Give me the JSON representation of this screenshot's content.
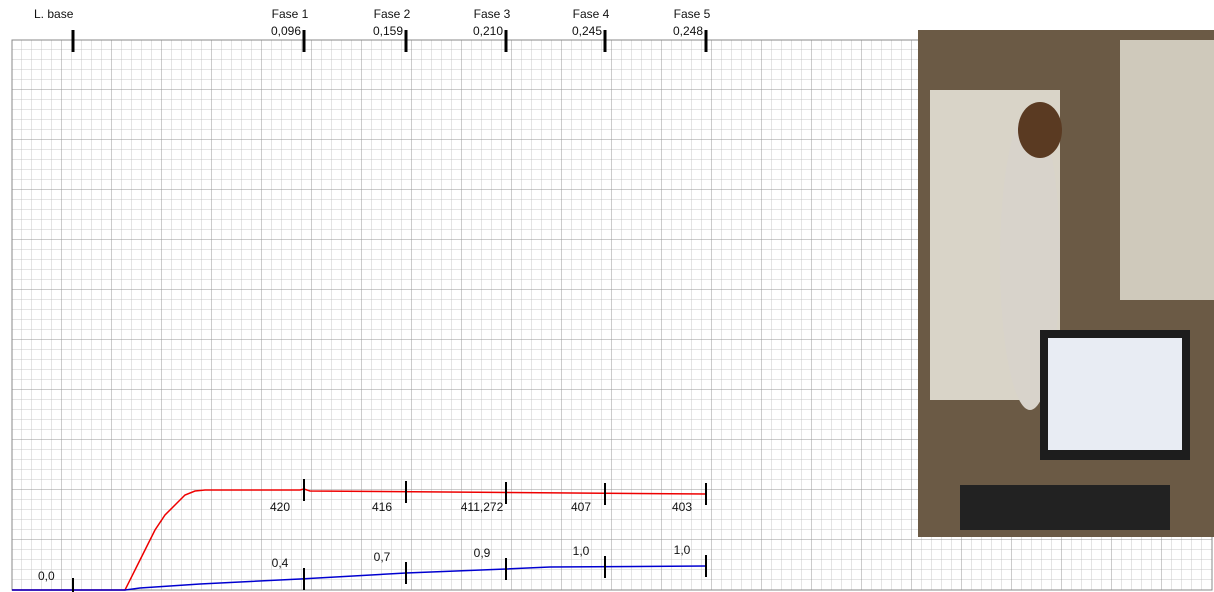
{
  "header": {
    "baseline_label": "L. base",
    "phases": [
      {
        "name": "Fase 1",
        "value": "0,096"
      },
      {
        "name": "Fase 2",
        "value": "0,159"
      },
      {
        "name": "Fase 3",
        "value": "0,210"
      },
      {
        "name": "Fase 4",
        "value": "0,245"
      },
      {
        "name": "Fase 5",
        "value": "0,248"
      }
    ]
  },
  "red_trace": {
    "labels": [
      "420",
      "416",
      "411,272",
      "407",
      "403"
    ]
  },
  "blue_trace": {
    "start_label": "0,0",
    "labels": [
      "0,4",
      "0,7",
      "0,9",
      "1,0",
      "1,0"
    ]
  }
}
